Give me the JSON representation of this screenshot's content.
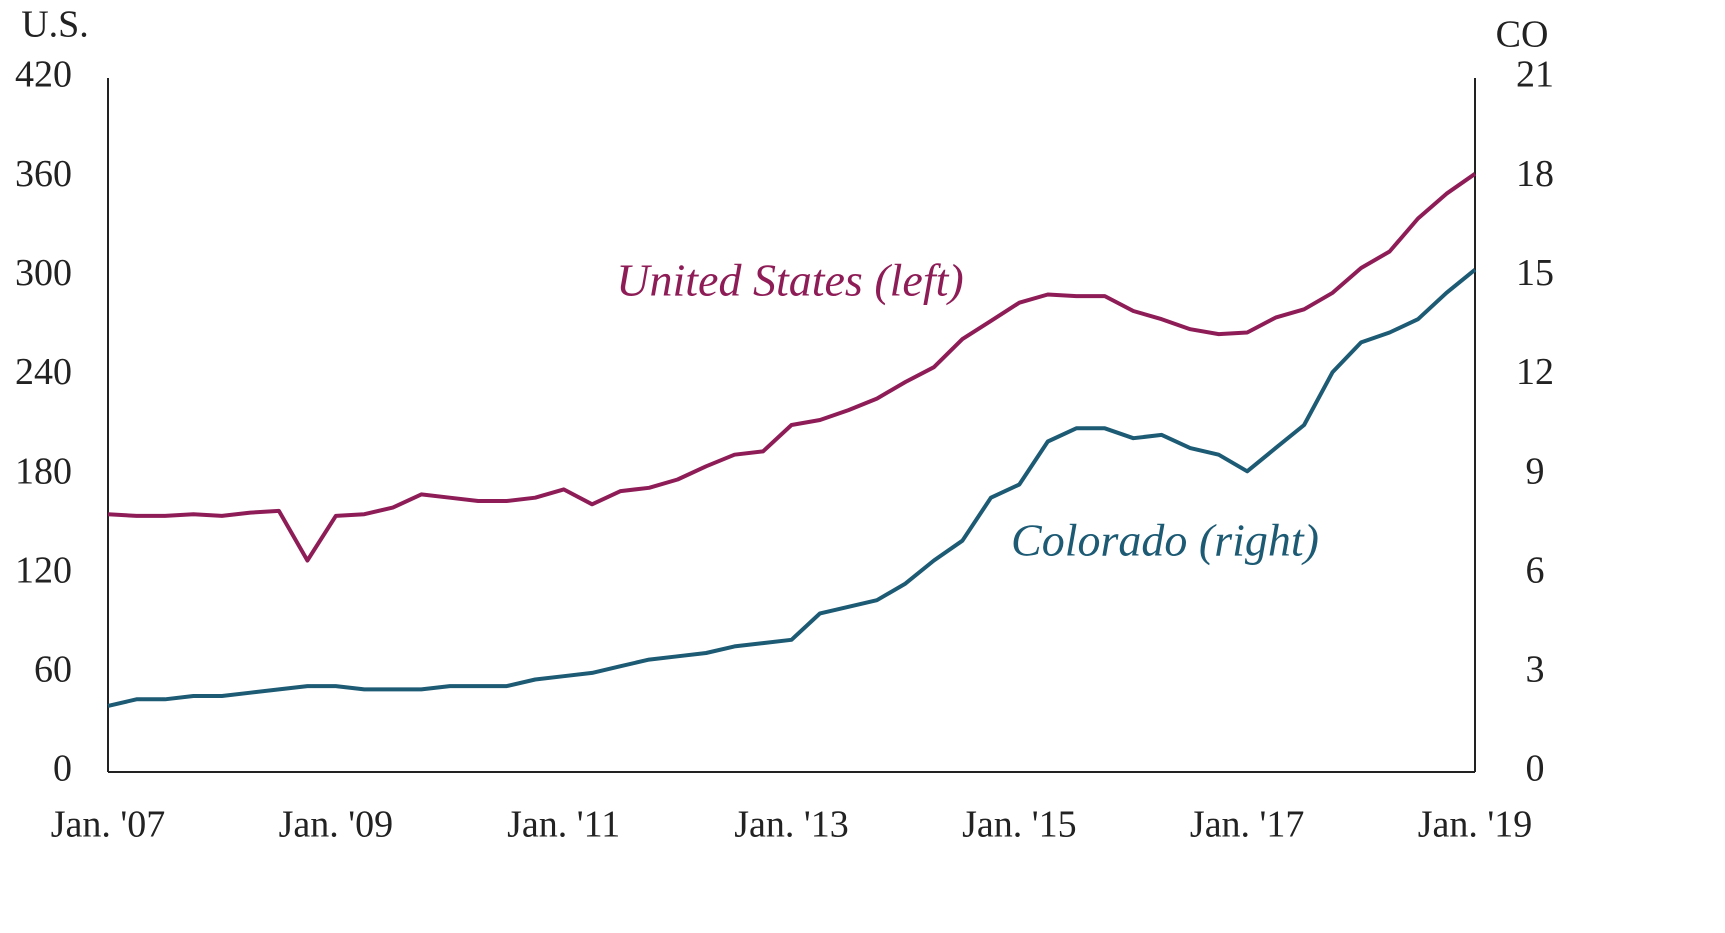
{
  "chart_data": {
    "type": "line",
    "y_label": "U.S.",
    "y2_label": "CO",
    "categories": [
      "Jan. '07",
      null,
      null,
      null,
      null,
      null,
      null,
      null,
      "Jan. '09",
      null,
      null,
      null,
      null,
      null,
      null,
      null,
      "Jan. '11",
      null,
      null,
      null,
      null,
      null,
      null,
      null,
      "Jan. '13",
      null,
      null,
      null,
      null,
      null,
      null,
      null,
      "Jan. '15",
      null,
      null,
      null,
      null,
      null,
      null,
      null,
      "Jan. '17",
      null,
      null,
      null,
      null,
      null,
      null,
      null,
      "Jan. '19"
    ],
    "series": [
      {
        "name": "United States (left)",
        "color": "#8e1d57",
        "axis": "y",
        "values": [
          156,
          155,
          155,
          156,
          155,
          157,
          158,
          128,
          155,
          156,
          160,
          168,
          166,
          164,
          164,
          166,
          171,
          162,
          170,
          172,
          177,
          185,
          192,
          194,
          210,
          213,
          219,
          226,
          236,
          245,
          262,
          273,
          284,
          289,
          288,
          288,
          279,
          274,
          268,
          265,
          266,
          275,
          280,
          290,
          305,
          315,
          335,
          350,
          362
        ]
      },
      {
        "name": "Colorado (right)",
        "color": "#1d5a74",
        "axis": "y2",
        "values": [
          2.0,
          2.2,
          2.2,
          2.3,
          2.3,
          2.4,
          2.5,
          2.6,
          2.6,
          2.5,
          2.5,
          2.5,
          2.6,
          2.6,
          2.6,
          2.8,
          2.9,
          3.0,
          3.2,
          3.4,
          3.5,
          3.6,
          3.8,
          3.9,
          4.0,
          4.8,
          5.0,
          5.2,
          5.7,
          6.4,
          7.0,
          8.3,
          8.7,
          10.0,
          10.4,
          10.4,
          10.1,
          10.2,
          9.8,
          9.6,
          9.1,
          9.8,
          10.5,
          12.1,
          13.0,
          13.3,
          13.7,
          14.5,
          15.2
        ]
      }
    ],
    "ylim": [
      0,
      420
    ],
    "yticks": [
      0,
      60,
      120,
      180,
      240,
      300,
      360,
      420
    ],
    "y2lim": [
      0,
      21
    ],
    "y2ticks": [
      0,
      3,
      6,
      9,
      12,
      15,
      18,
      21
    ],
    "grid": false
  }
}
